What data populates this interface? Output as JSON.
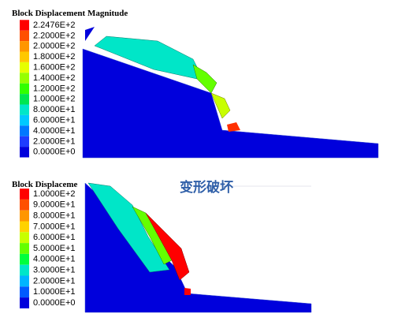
{
  "panels": [
    {
      "title": "Block Displacement Magnitude",
      "legend": [
        {
          "label": "2.2476E+2",
          "color": "#ff0000"
        },
        {
          "label": "2.2000E+2",
          "color": "#ff5000"
        },
        {
          "label": "2.0000E+2",
          "color": "#ff9600"
        },
        {
          "label": "1.8000E+2",
          "color": "#ffc800"
        },
        {
          "label": "1.6000E+2",
          "color": "#e6ff00"
        },
        {
          "label": "1.4000E+2",
          "color": "#96ff00"
        },
        {
          "label": "1.2000E+2",
          "color": "#32ff00"
        },
        {
          "label": "1.0000E+2",
          "color": "#00e650"
        },
        {
          "label": "8.0000E+1",
          "color": "#00e6c8"
        },
        {
          "label": "6.0000E+1",
          "color": "#00c8ff"
        },
        {
          "label": "4.0000E+1",
          "color": "#0078ff"
        },
        {
          "label": "2.0000E+1",
          "color": "#1e3cff"
        },
        {
          "label": "0.0000E+0",
          "color": "#0000dc"
        }
      ]
    },
    {
      "title": "Block Displaceme",
      "legend": [
        {
          "label": "1.0000E+2",
          "color": "#ff0000"
        },
        {
          "label": "9.0000E+1",
          "color": "#ff5000"
        },
        {
          "label": "8.0000E+1",
          "color": "#ff9600"
        },
        {
          "label": "7.0000E+1",
          "color": "#ffd200"
        },
        {
          "label": "6.0000E+1",
          "color": "#c8ff00"
        },
        {
          "label": "5.0000E+1",
          "color": "#64ff00"
        },
        {
          "label": "4.0000E+1",
          "color": "#00ff3c"
        },
        {
          "label": "3.0000E+1",
          "color": "#00e6c8"
        },
        {
          "label": "2.0000E+1",
          "color": "#00b4ff"
        },
        {
          "label": "1.0000E+1",
          "color": "#005aff"
        },
        {
          "label": "0.0000E+0",
          "color": "#0000dc"
        }
      ]
    }
  ],
  "annotation": "变形破坏"
}
